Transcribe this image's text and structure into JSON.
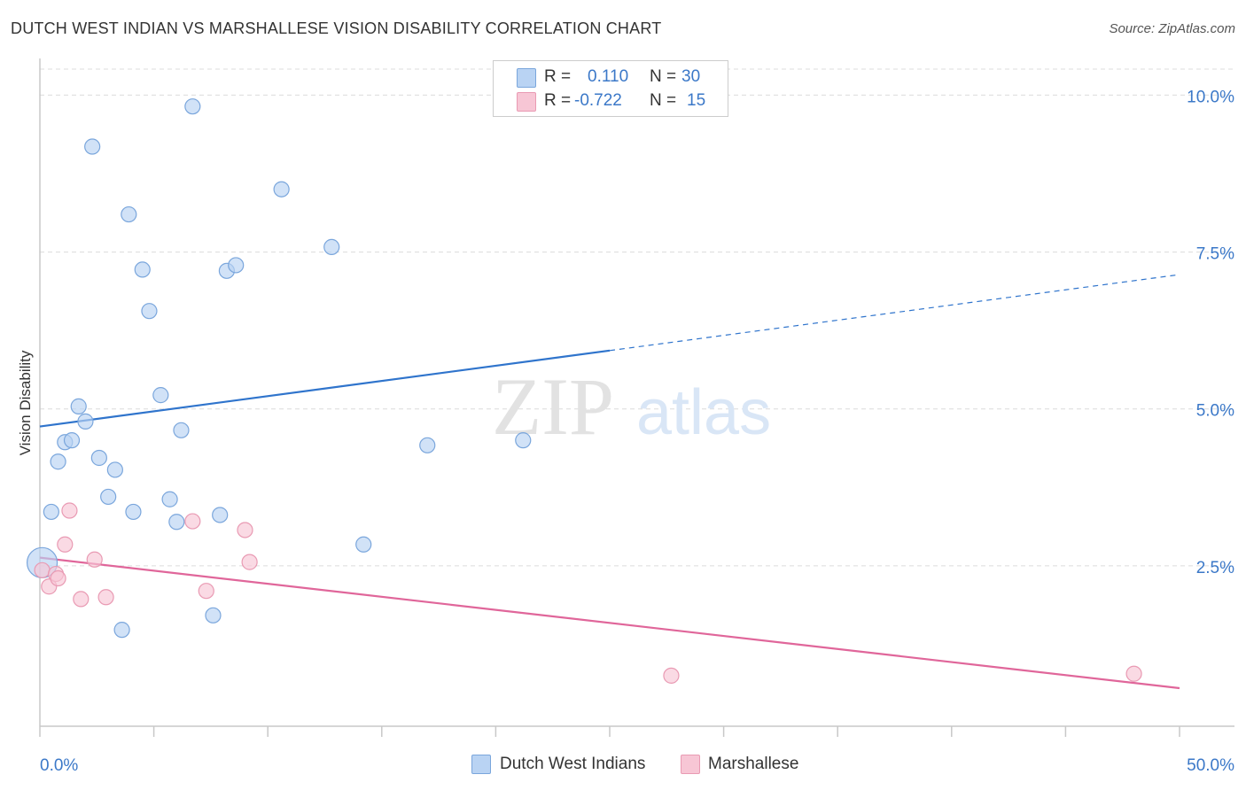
{
  "header": {
    "title": "DUTCH WEST INDIAN VS MARSHALLESE VISION DISABILITY CORRELATION CHART",
    "source": "Source: ZipAtlas.com"
  },
  "watermark": {
    "zip": "ZIP",
    "atlas": "atlas"
  },
  "legend_top": {
    "rows": [
      {
        "r_label": "R =",
        "r_value": "0.110",
        "n_label": "N =",
        "n_value": "30"
      },
      {
        "r_label": "R =",
        "r_value": "-0.722",
        "n_label": "N =",
        "n_value": "15"
      }
    ]
  },
  "colors": {
    "blue_fill": "#b9d3f3",
    "blue_stroke": "#7aa6dc",
    "blue_line": "#2f74cc",
    "pink_fill": "#f7c6d5",
    "pink_stroke": "#e99ab3",
    "pink_line": "#e0669a",
    "tick_label": "#3b78c8",
    "grid": "#dcdcdc"
  },
  "chart_data": {
    "type": "scatter",
    "title": "DUTCH WEST INDIAN VS MARSHALLESE VISION DISABILITY CORRELATION CHART",
    "xlabel": "",
    "ylabel": "Vision Disability",
    "xlim": [
      0,
      50
    ],
    "ylim": [
      0,
      10.5
    ],
    "x_tick_labels": [
      "0.0%",
      "50.0%"
    ],
    "y_ticks": [
      2.5,
      5.0,
      7.5,
      10.0
    ],
    "y_tick_labels": [
      "2.5%",
      "5.0%",
      "7.5%",
      "10.0%"
    ],
    "grid": true,
    "legend_position": "bottom",
    "series": [
      {
        "name": "Dutch West Indians",
        "color": "#7aa6dc",
        "points": [
          [
            0.1,
            2.55
          ],
          [
            0.5,
            3.36
          ],
          [
            0.8,
            4.16
          ],
          [
            1.1,
            4.47
          ],
          [
            1.4,
            4.5
          ],
          [
            1.7,
            5.04
          ],
          [
            2.0,
            4.8
          ],
          [
            2.3,
            9.18
          ],
          [
            2.6,
            4.22
          ],
          [
            3.0,
            3.6
          ],
          [
            3.3,
            4.03
          ],
          [
            3.6,
            1.48
          ],
          [
            3.9,
            8.1
          ],
          [
            4.1,
            3.36
          ],
          [
            4.5,
            7.22
          ],
          [
            4.8,
            6.56
          ],
          [
            5.3,
            5.22
          ],
          [
            5.7,
            3.56
          ],
          [
            6.0,
            3.2
          ],
          [
            6.2,
            4.66
          ],
          [
            6.7,
            9.82
          ],
          [
            7.6,
            1.71
          ],
          [
            7.9,
            3.31
          ],
          [
            8.2,
            7.2
          ],
          [
            8.6,
            7.29
          ],
          [
            10.6,
            8.5
          ],
          [
            12.8,
            7.58
          ],
          [
            14.2,
            2.84
          ],
          [
            17.0,
            4.42
          ],
          [
            21.2,
            4.5
          ]
        ],
        "trend": {
          "x0": 0,
          "y0": 4.72,
          "x1": 25,
          "y1": 5.93,
          "dashed_to_x": 50,
          "dashed_to_y": 7.14
        }
      },
      {
        "name": "Marshallese",
        "color": "#e99ab3",
        "points": [
          [
            0.1,
            2.43
          ],
          [
            0.4,
            2.17
          ],
          [
            0.7,
            2.37
          ],
          [
            0.8,
            2.3
          ],
          [
            1.1,
            2.84
          ],
          [
            1.3,
            3.38
          ],
          [
            1.8,
            1.97
          ],
          [
            2.4,
            2.6
          ],
          [
            2.9,
            2.0
          ],
          [
            6.7,
            3.21
          ],
          [
            7.3,
            2.1
          ],
          [
            9.0,
            3.07
          ],
          [
            9.2,
            2.56
          ],
          [
            27.7,
            0.75
          ],
          [
            48.0,
            0.78
          ]
        ],
        "trend": {
          "x0": 0,
          "y0": 2.63,
          "x1": 50,
          "y1": 0.55
        }
      }
    ]
  }
}
